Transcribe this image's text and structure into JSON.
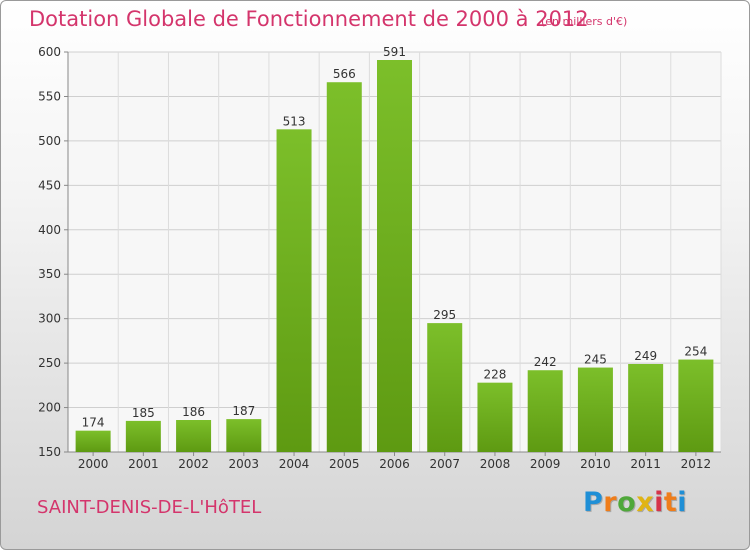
{
  "chart_data": {
    "type": "bar",
    "title": "Dotation Globale de Fonctionnement de 2000 à 2012",
    "subtitle": "(en milliers d'€)",
    "categories": [
      "2000",
      "2001",
      "2002",
      "2003",
      "2004",
      "2005",
      "2006",
      "2007",
      "2008",
      "2009",
      "2010",
      "2011",
      "2012"
    ],
    "values": [
      174,
      185,
      186,
      187,
      513,
      566,
      591,
      295,
      228,
      242,
      245,
      249,
      254
    ],
    "ylim": [
      150,
      600
    ],
    "yticks": [
      150,
      200,
      250,
      300,
      350,
      400,
      450,
      500,
      550,
      600
    ],
    "xlabel": "",
    "ylabel": "",
    "grid": true,
    "bar_color": "#7cbf2a",
    "bar_color_dark": "#5e9a12"
  },
  "footer": {
    "commune": "SAINT-DENIS-DE-L'HôTEL"
  },
  "logo": {
    "letters": [
      "P",
      "r",
      "o",
      "x",
      "i",
      "t",
      "i"
    ]
  }
}
